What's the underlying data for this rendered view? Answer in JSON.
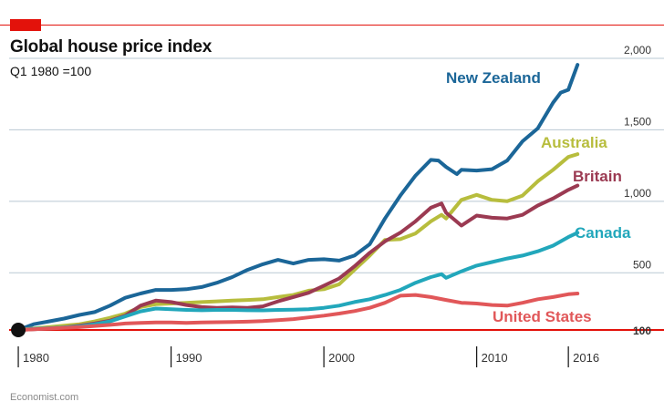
{
  "header": {
    "title": "Global house price index",
    "subtitle": "Q1 1980 =100"
  },
  "footer": {
    "source": "Economist.com"
  },
  "colors": {
    "brand_red": "#e3120b",
    "New Zealand": "#1b6698",
    "Australia": "#b7bd3d",
    "Britain": "#9b3a52",
    "Canada": "#22a7bb",
    "United States": "#e15759"
  },
  "chart_data": {
    "type": "line",
    "title": "Global house price index",
    "subtitle": "Q1 1980 =100",
    "xlabel": "",
    "ylabel": "",
    "xlim": [
      1979.4,
      2018.2
    ],
    "ylim": [
      100,
      2000
    ],
    "y_ticks": [
      {
        "value": 100,
        "label": "100"
      },
      {
        "value": 500,
        "label": "500"
      },
      {
        "value": 1000,
        "label": "1,000"
      },
      {
        "value": 1500,
        "label": "1,500"
      },
      {
        "value": 2000,
        "label": "2,000"
      }
    ],
    "x_ticks": [
      {
        "value": 1980,
        "label": "1980"
      },
      {
        "value": 1990,
        "label": "1990"
      },
      {
        "value": 2000,
        "label": "2000"
      },
      {
        "value": 2010,
        "label": "2010"
      },
      {
        "value": 2016,
        "label": "2016"
      }
    ],
    "grid": true,
    "legend": "direct labels at line ends",
    "start_marker": {
      "x": 1980,
      "y": 100
    },
    "series": [
      {
        "name": "New Zealand",
        "x": [
          1980,
          1981,
          1982,
          1983,
          1984,
          1985,
          1986,
          1987,
          1988,
          1989,
          1990,
          1991,
          1992,
          1993,
          1994,
          1995,
          1996,
          1997,
          1998,
          1999,
          2000,
          2001,
          2002,
          2003,
          2004,
          2005,
          2006,
          2007,
          2007.5,
          2008,
          2008.7,
          2009,
          2010,
          2011,
          2012,
          2013,
          2014,
          2015,
          2015.5,
          2016,
          2016.6
        ],
        "y": [
          100,
          140,
          160,
          180,
          205,
          225,
          270,
          325,
          355,
          380,
          380,
          385,
          400,
          430,
          470,
          520,
          560,
          590,
          565,
          590,
          595,
          585,
          620,
          700,
          880,
          1040,
          1180,
          1290,
          1285,
          1240,
          1190,
          1220,
          1215,
          1225,
          1285,
          1420,
          1510,
          1690,
          1760,
          1780,
          1955
        ]
      },
      {
        "name": "Australia",
        "x": [
          1980,
          1981,
          1982,
          1983,
          1984,
          1985,
          1986,
          1987,
          1988,
          1989,
          1990,
          1991,
          1992,
          1993,
          1994,
          1995,
          1996,
          1997,
          1998,
          1999,
          2000,
          2001,
          2002,
          2003,
          2004,
          2005,
          2006,
          2007,
          2007.7,
          2008,
          2009,
          2010,
          2011,
          2012,
          2013,
          2014,
          2015,
          2016,
          2016.6
        ],
        "y": [
          100,
          110,
          120,
          130,
          140,
          160,
          185,
          215,
          260,
          280,
          285,
          290,
          295,
          300,
          305,
          310,
          315,
          330,
          345,
          375,
          385,
          420,
          520,
          620,
          730,
          735,
          775,
          860,
          905,
          880,
          1010,
          1045,
          1010,
          1000,
          1040,
          1140,
          1220,
          1310,
          1330
        ]
      },
      {
        "name": "Britain",
        "x": [
          1980,
          1981,
          1982,
          1983,
          1984,
          1985,
          1986,
          1987,
          1988,
          1989,
          1990,
          1991,
          1992,
          1993,
          1994,
          1995,
          1996,
          1997,
          1998,
          1999,
          2000,
          2001,
          2002,
          2003,
          2004,
          2005,
          2006,
          2007,
          2007.7,
          2008,
          2009,
          2010,
          2011,
          2012,
          2013,
          2014,
          2015,
          2016,
          2016.6
        ],
        "y": [
          100,
          105,
          110,
          118,
          130,
          145,
          165,
          200,
          270,
          305,
          295,
          275,
          260,
          255,
          258,
          255,
          265,
          300,
          330,
          360,
          410,
          460,
          545,
          640,
          720,
          780,
          860,
          955,
          985,
          920,
          830,
          900,
          885,
          880,
          905,
          970,
          1020,
          1080,
          1110
        ]
      },
      {
        "name": "Canada",
        "x": [
          1980,
          1981,
          1982,
          1983,
          1984,
          1985,
          1986,
          1987,
          1988,
          1989,
          1990,
          1991,
          1992,
          1993,
          1994,
          1995,
          1996,
          1997,
          1998,
          1999,
          2000,
          2001,
          2002,
          2003,
          2004,
          2005,
          2006,
          2007,
          2007.7,
          2008,
          2009,
          2010,
          2011,
          2012,
          2013,
          2014,
          2015,
          2016,
          2016.6
        ],
        "y": [
          100,
          108,
          112,
          118,
          125,
          140,
          160,
          195,
          230,
          250,
          245,
          240,
          238,
          240,
          240,
          238,
          237,
          240,
          242,
          245,
          255,
          270,
          295,
          315,
          345,
          380,
          430,
          470,
          490,
          465,
          510,
          550,
          575,
          600,
          620,
          650,
          690,
          750,
          780
        ]
      },
      {
        "name": "United States",
        "x": [
          1980,
          1981,
          1982,
          1983,
          1984,
          1985,
          1986,
          1987,
          1988,
          1989,
          1990,
          1991,
          1992,
          1993,
          1994,
          1995,
          1996,
          1997,
          1998,
          1999,
          2000,
          2001,
          2002,
          2003,
          2004,
          2005,
          2006,
          2007,
          2008,
          2009,
          2010,
          2011,
          2012,
          2013,
          2014,
          2015,
          2016,
          2016.6
        ],
        "y": [
          100,
          105,
          110,
          115,
          120,
          128,
          136,
          145,
          150,
          152,
          152,
          150,
          152,
          154,
          156,
          158,
          162,
          168,
          176,
          188,
          200,
          215,
          232,
          255,
          290,
          340,
          345,
          330,
          310,
          290,
          285,
          275,
          270,
          290,
          315,
          330,
          350,
          355
        ]
      }
    ]
  }
}
